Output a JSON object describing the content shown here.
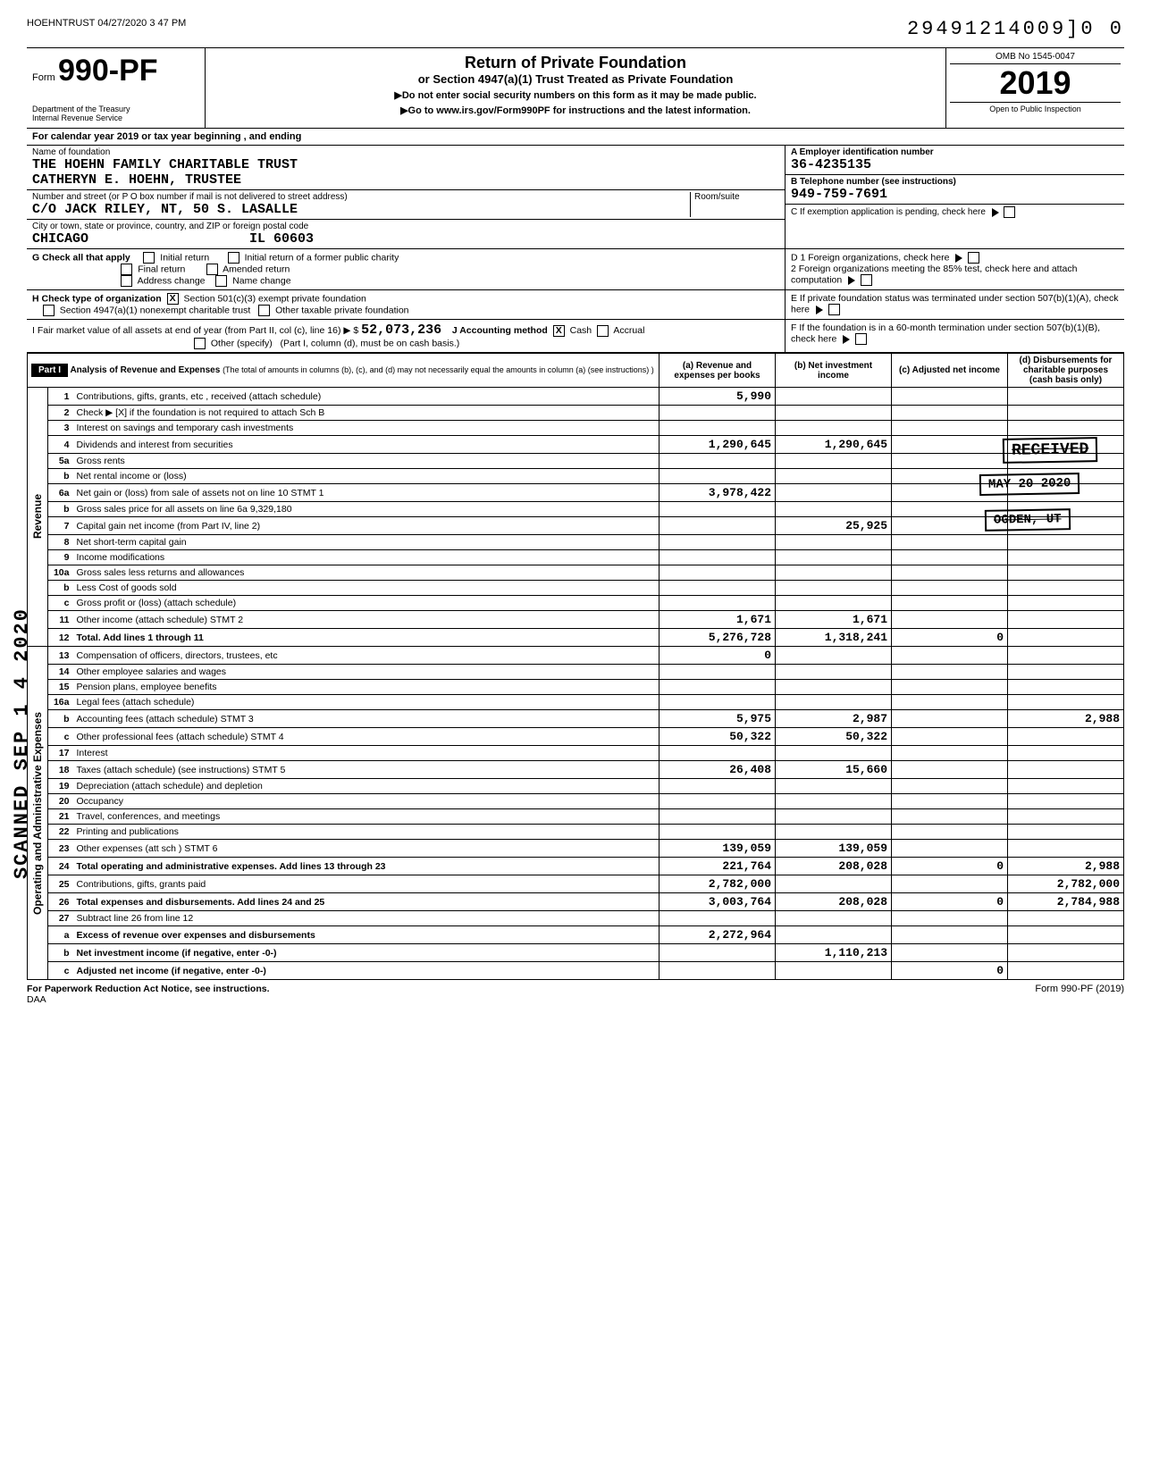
{
  "top": {
    "left_stamp": "HOEHNTRUST 04/27/2020 3 47 PM",
    "tracking": "29491214009]0  0"
  },
  "header": {
    "form_word": "Form",
    "form_number": "990-PF",
    "dept": "Department of the Treasury\nInternal Revenue Service",
    "title": "Return of Private Foundation",
    "subtitle": "or Section 4947(a)(1) Trust Treated as Private Foundation",
    "note1": "▶Do not enter social security numbers on this form as it may be made public.",
    "note2": "▶Go to www.irs.gov/Form990PF for instructions and the latest information.",
    "omb": "OMB No 1545-0047",
    "year": "2019",
    "open": "Open to Public Inspection"
  },
  "calendar": "For calendar year 2019 or tax year beginning                                  , and ending",
  "foundation": {
    "name_label": "Name of foundation",
    "name1": "THE HOEHN FAMILY CHARITABLE TRUST",
    "name2": "CATHERYN E. HOEHN, TRUSTEE",
    "addr_label": "Number and street (or P O  box number if mail is not delivered to street address)",
    "addr": "C/O JACK RILEY, NT, 50 S. LASALLE",
    "room_label": "Room/suite",
    "city_label": "City or town, state or province, country, and ZIP or foreign postal code",
    "city": "CHICAGO                    IL 60603"
  },
  "right_block": {
    "a_label": "A   Employer identification number",
    "ein": "36-4235135",
    "b_label": "B   Telephone number (see instructions)",
    "phone": "949-759-7691",
    "c_label": "C   If exemption application is pending, check here",
    "d1": "D  1  Foreign organizations, check here",
    "d2": "2  Foreign organizations meeting the 85% test, check here and attach computation",
    "e": "E   If private foundation status was terminated under section 507(b)(1)(A), check here",
    "f": "F   If the foundation is in a 60-month termination under section 507(b)(1)(B), check here"
  },
  "g": {
    "label": "G  Check all that apply",
    "opts": [
      "Initial return",
      "Final return",
      "Address change",
      "Initial return of a former public charity",
      "Amended return",
      "Name change"
    ]
  },
  "h": {
    "label": "H  Check type of organization",
    "opt1": "Section 501(c)(3) exempt private foundation",
    "opt2": "Section 4947(a)(1) nonexempt charitable trust",
    "opt3": "Other taxable private foundation"
  },
  "i": {
    "label": "I  Fair market value of all assets at end of year (from Part II, col (c), line 16) ▶  $",
    "value": "52,073,236",
    "j_label": "J  Accounting method",
    "j_cash": "Cash",
    "j_accrual": "Accrual",
    "j_other": "Other (specify)",
    "j_note": "(Part I, column (d), must be on cash basis.)"
  },
  "part1": {
    "label": "Part I",
    "title": "Analysis of Revenue and Expenses",
    "title_note": "(The total of amounts in columns (b), (c), and (d) may not necessarily equal the amounts in column (a) (see instructions) )",
    "col_a": "(a) Revenue and expenses per books",
    "col_b": "(b) Net investment income",
    "col_c": "(c) Adjusted net income",
    "col_d": "(d) Disbursements for charitable purposes (cash basis only)"
  },
  "side_labels": {
    "revenue": "Revenue",
    "expenses": "Operating and Administrative Expenses"
  },
  "rows": [
    {
      "n": "1",
      "desc": "Contributions, gifts, grants, etc , received (attach schedule)",
      "a": "5,990",
      "b": "",
      "c": "",
      "d": ""
    },
    {
      "n": "2",
      "desc": "Check ▶  [X]  if the foundation is not required to attach Sch  B",
      "a": "",
      "b": "",
      "c": "",
      "d": ""
    },
    {
      "n": "3",
      "desc": "Interest on savings and temporary cash investments",
      "a": "",
      "b": "",
      "c": "",
      "d": ""
    },
    {
      "n": "4",
      "desc": "Dividends and interest from securities",
      "a": "1,290,645",
      "b": "1,290,645",
      "c": "",
      "d": ""
    },
    {
      "n": "5a",
      "desc": "Gross rents",
      "a": "",
      "b": "",
      "c": "",
      "d": ""
    },
    {
      "n": "b",
      "desc": "Net rental income or (loss)",
      "a": "",
      "b": "",
      "c": "",
      "d": ""
    },
    {
      "n": "6a",
      "desc": "Net gain or (loss) from sale of assets not on line 10    STMT 1",
      "a": "3,978,422",
      "b": "",
      "c": "",
      "d": ""
    },
    {
      "n": "b",
      "desc": "Gross sales price for all assets on line 6a           9,329,180",
      "a": "",
      "b": "",
      "c": "",
      "d": ""
    },
    {
      "n": "7",
      "desc": "Capital gain net income (from Part IV, line 2)",
      "a": "",
      "b": "25,925",
      "c": "",
      "d": ""
    },
    {
      "n": "8",
      "desc": "Net short-term capital gain",
      "a": "",
      "b": "",
      "c": "",
      "d": ""
    },
    {
      "n": "9",
      "desc": "Income modifications",
      "a": "",
      "b": "",
      "c": "",
      "d": ""
    },
    {
      "n": "10a",
      "desc": "Gross sales less returns and allowances",
      "a": "",
      "b": "",
      "c": "",
      "d": ""
    },
    {
      "n": "b",
      "desc": "Less Cost of goods sold",
      "a": "",
      "b": "",
      "c": "",
      "d": ""
    },
    {
      "n": "c",
      "desc": "Gross profit or (loss) (attach schedule)",
      "a": "",
      "b": "",
      "c": "",
      "d": ""
    },
    {
      "n": "11",
      "desc": "Other income (attach schedule)          STMT 2",
      "a": "1,671",
      "b": "1,671",
      "c": "",
      "d": ""
    },
    {
      "n": "12",
      "desc": "Total. Add lines 1 through 11",
      "a": "5,276,728",
      "b": "1,318,241",
      "c": "0",
      "d": "",
      "bold": true
    },
    {
      "n": "13",
      "desc": "Compensation of officers, directors, trustees, etc",
      "a": "0",
      "b": "",
      "c": "",
      "d": ""
    },
    {
      "n": "14",
      "desc": "Other employee salaries and wages",
      "a": "",
      "b": "",
      "c": "",
      "d": ""
    },
    {
      "n": "15",
      "desc": "Pension plans, employee benefits",
      "a": "",
      "b": "",
      "c": "",
      "d": ""
    },
    {
      "n": "16a",
      "desc": "Legal fees (attach schedule)",
      "a": "",
      "b": "",
      "c": "",
      "d": ""
    },
    {
      "n": "b",
      "desc": "Accounting fees (attach schedule)       STMT 3",
      "a": "5,975",
      "b": "2,987",
      "c": "",
      "d": "2,988"
    },
    {
      "n": "c",
      "desc": "Other professional fees (attach schedule)  STMT 4",
      "a": "50,322",
      "b": "50,322",
      "c": "",
      "d": ""
    },
    {
      "n": "17",
      "desc": "Interest",
      "a": "",
      "b": "",
      "c": "",
      "d": ""
    },
    {
      "n": "18",
      "desc": "Taxes (attach schedule) (see instructions)   STMT 5",
      "a": "26,408",
      "b": "15,660",
      "c": "",
      "d": ""
    },
    {
      "n": "19",
      "desc": "Depreciation (attach schedule) and depletion",
      "a": "",
      "b": "",
      "c": "",
      "d": ""
    },
    {
      "n": "20",
      "desc": "Occupancy",
      "a": "",
      "b": "",
      "c": "",
      "d": ""
    },
    {
      "n": "21",
      "desc": "Travel, conferences, and meetings",
      "a": "",
      "b": "",
      "c": "",
      "d": ""
    },
    {
      "n": "22",
      "desc": "Printing and publications",
      "a": "",
      "b": "",
      "c": "",
      "d": ""
    },
    {
      "n": "23",
      "desc": "Other expenses (att  sch )              STMT 6",
      "a": "139,059",
      "b": "139,059",
      "c": "",
      "d": ""
    },
    {
      "n": "24",
      "desc": "Total operating and administrative expenses. Add lines 13 through 23",
      "a": "221,764",
      "b": "208,028",
      "c": "0",
      "d": "2,988",
      "bold": true
    },
    {
      "n": "25",
      "desc": "Contributions, gifts, grants paid",
      "a": "2,782,000",
      "b": "",
      "c": "",
      "d": "2,782,000"
    },
    {
      "n": "26",
      "desc": "Total expenses and disbursements. Add lines 24 and 25",
      "a": "3,003,764",
      "b": "208,028",
      "c": "0",
      "d": "2,784,988",
      "bold": true
    },
    {
      "n": "27",
      "desc": "Subtract line 26 from line 12",
      "a": "",
      "b": "",
      "c": "",
      "d": ""
    },
    {
      "n": "a",
      "desc": "Excess of revenue over expenses and disbursements",
      "a": "2,272,964",
      "b": "",
      "c": "",
      "d": "",
      "bold": true
    },
    {
      "n": "b",
      "desc": "Net investment income (if negative, enter -0-)",
      "a": "",
      "b": "1,110,213",
      "c": "",
      "d": "",
      "bold": true
    },
    {
      "n": "c",
      "desc": "Adjusted net income (if negative, enter -0-)",
      "a": "",
      "b": "",
      "c": "0",
      "d": "",
      "bold": true
    }
  ],
  "stamps": {
    "received": "RECEIVED",
    "may": "MAY 20 2020",
    "ogden": "OGDEN, UT",
    "scanned": "SCANNED SEP 1 4 2020"
  },
  "footer": {
    "left": "For Paperwork Reduction Act Notice, see instructions.",
    "daa": "DAA",
    "right": "Form 990-PF (2019)"
  },
  "colors": {
    "border": "#000000",
    "shade": "#d0d0d0"
  }
}
